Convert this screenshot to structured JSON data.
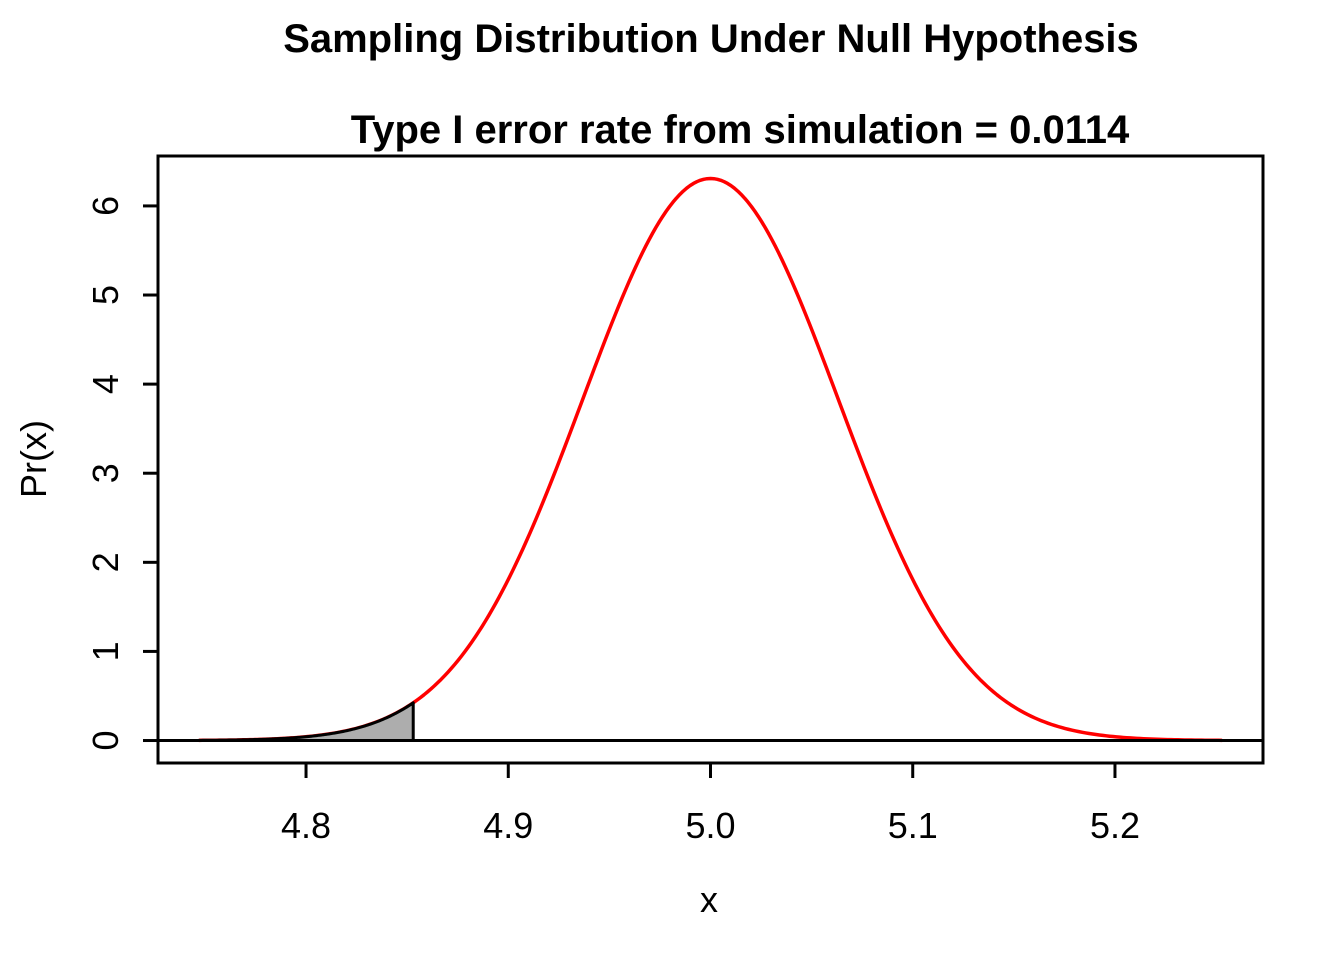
{
  "page": {
    "background": "#FFFFFF"
  },
  "chart_data": {
    "type": "line",
    "title": "Sampling Distribution Under Null Hypothesis",
    "subtitle": "Type I error rate from simulation = 0.0114",
    "xlabel": "x",
    "ylabel": "Pr(x)",
    "type_i_error_rate": 0.0114,
    "distribution": {
      "name": "normal-density",
      "mean": 5,
      "sd": 0.063246,
      "peak_density": 6.3078
    },
    "curve_x_range": [
      4.747,
      5.253
    ],
    "critical_value": 4.853,
    "shaded_region": {
      "tail": "left",
      "from": 4.747,
      "to": 4.853
    },
    "xticks": [
      "4.8",
      "4.9",
      "5.0",
      "5.1",
      "5.2"
    ],
    "xtick_values": [
      4.8,
      4.9,
      5.0,
      5.1,
      5.2
    ],
    "yticks": [
      "0",
      "1",
      "2",
      "3",
      "4",
      "5",
      "6"
    ],
    "ytick_values": [
      0,
      1,
      2,
      3,
      4,
      5,
      6
    ],
    "xlim": [
      4.7268,
      5.2732
    ],
    "ylim": [
      -0.2523,
      6.5603
    ],
    "grid": false,
    "legend": null,
    "colors": {
      "curve": "#FF0000",
      "shade_fill": "#ADADAD",
      "shade_border": "#000000",
      "axis": "#000000",
      "text": "#000000"
    },
    "curve_points": {
      "x": [
        4.74,
        4.76,
        4.78,
        4.8,
        4.82,
        4.84,
        4.86,
        4.88,
        4.9,
        4.92,
        4.94,
        4.96,
        4.98,
        5.0,
        5.02,
        5.04,
        5.06,
        5.08,
        5.1,
        5.12,
        5.14,
        5.16,
        5.18,
        5.2,
        5.22,
        5.24,
        5.26
      ],
      "y": [
        0.0013,
        0.0047,
        0.0148,
        0.0425,
        0.1101,
        0.2572,
        0.5437,
        1.0427,
        1.8073,
        2.8343,
        4.0221,
        5.1644,
        6.0002,
        6.3078,
        6.0002,
        5.1644,
        4.0221,
        2.8343,
        1.8073,
        1.0427,
        0.5437,
        0.2572,
        0.1101,
        0.0425,
        0.0148,
        0.0047,
        0.0013
      ]
    }
  }
}
